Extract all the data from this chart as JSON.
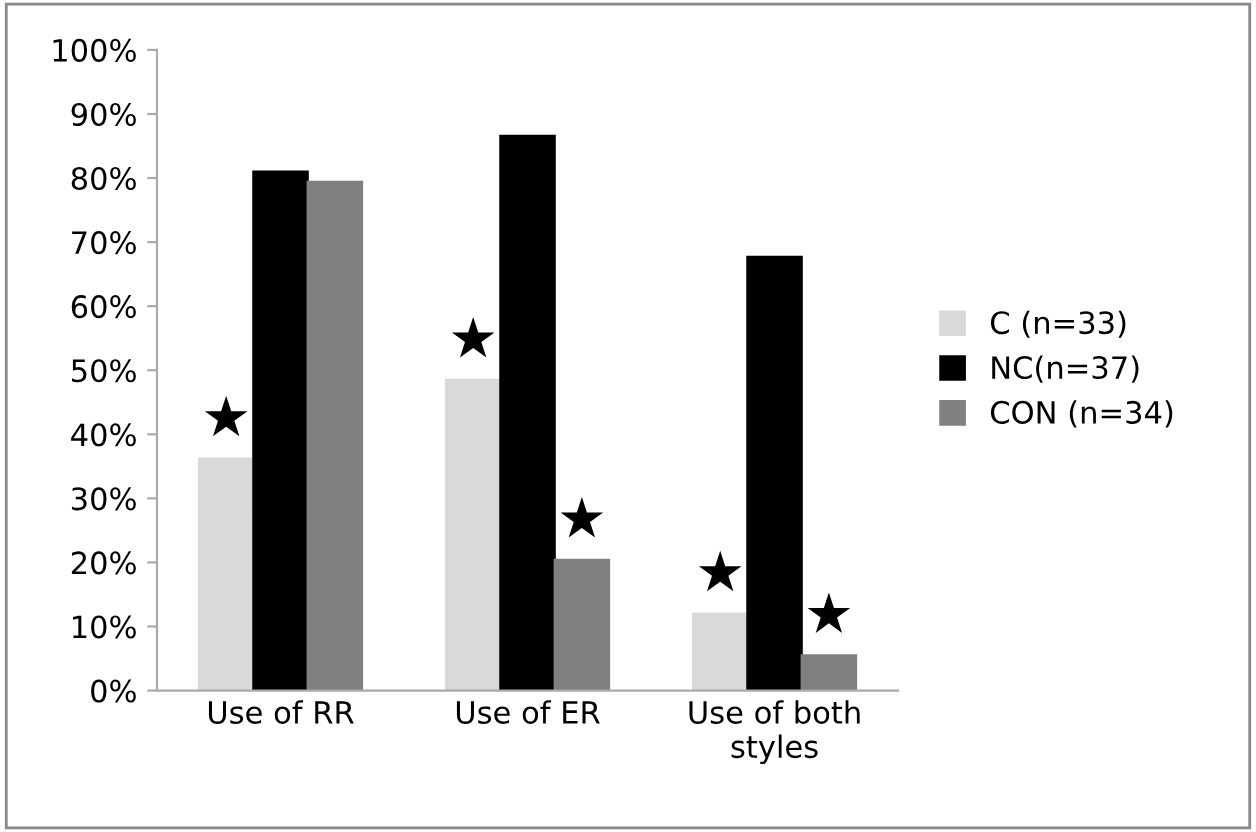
{
  "chart_data": {
    "type": "bar",
    "categories": [
      "Use of RR",
      "Use of ER",
      "Use of both\nstyles"
    ],
    "series": [
      {
        "name": "C (n=33)",
        "color": "#d9d9d9",
        "values": [
          36.2,
          48.5,
          12.0
        ]
      },
      {
        "name": "NC(n=37)",
        "color": "#000000",
        "values": [
          81.0,
          86.6,
          67.7
        ]
      },
      {
        "name": "CON (n=34)",
        "color": "#808080",
        "values": [
          79.4,
          20.4,
          5.5
        ]
      }
    ],
    "ylim": [
      0,
      100
    ],
    "yticks": [
      {
        "value": 0,
        "label": "0%"
      },
      {
        "value": 10,
        "label": "10%"
      },
      {
        "value": 20,
        "label": "20%"
      },
      {
        "value": 30,
        "label": "30%"
      },
      {
        "value": 40,
        "label": "40%"
      },
      {
        "value": 50,
        "label": "50%"
      },
      {
        "value": 60,
        "label": "60%"
      },
      {
        "value": 70,
        "label": "70%"
      },
      {
        "value": 80,
        "label": "80%"
      },
      {
        "value": 90,
        "label": "90%"
      },
      {
        "value": 100,
        "label": "100%"
      }
    ],
    "annotations": [
      "★",
      "★",
      "★",
      "★",
      "★"
    ],
    "grid": false,
    "legend": "right"
  }
}
